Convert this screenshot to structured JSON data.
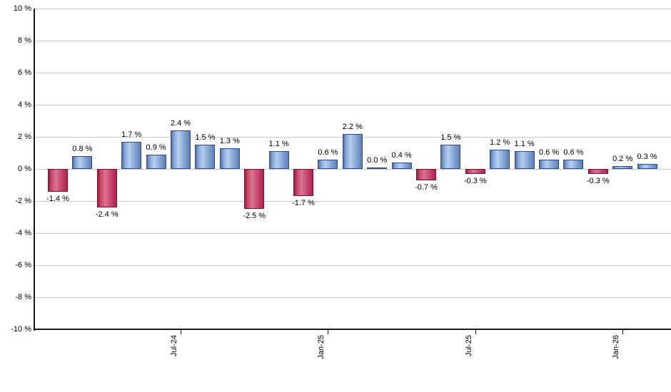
{
  "chart_data": {
    "type": "bar",
    "title": "",
    "xlabel": "",
    "ylabel": "",
    "unit": "%",
    "values": [
      -1.4,
      0.8,
      -2.4,
      1.7,
      0.9,
      2.4,
      1.5,
      1.3,
      -2.5,
      1.1,
      -1.7,
      0.6,
      2.2,
      0.0,
      0.4,
      -0.7,
      1.5,
      -0.3,
      1.2,
      1.1,
      0.6,
      0.6,
      -0.3,
      0.2,
      0.3
    ],
    "value_labels": [
      "-1.4 %",
      "0.8 %",
      "-2.4 %",
      "1.7 %",
      "0.9 %",
      "2.4 %",
      "1.5 %",
      "1.3 %",
      "-2.5 %",
      "1.1 %",
      "-1.7 %",
      "0.6 %",
      "2.2 %",
      "0.0 %",
      "0.4 %",
      "-0.7 %",
      "1.5 %",
      "-0.3 %",
      "1.2 %",
      "1.1 %",
      "0.6 %",
      "0.6 %",
      "-0.3 %",
      "0.2 %",
      "0.3 %"
    ],
    "x_ticks": [
      {
        "bar_index": 5,
        "label": "Jul-24"
      },
      {
        "bar_index": 11,
        "label": "Jan-25"
      },
      {
        "bar_index": 17,
        "label": "Jul-25"
      },
      {
        "bar_index": 23,
        "label": "Jan-26"
      }
    ],
    "y_axis": {
      "min": -10,
      "max": 10,
      "step": 2,
      "tick_labels": [
        "10 %",
        "8 %",
        "6 %",
        "4 %",
        "2 %",
        "0 %",
        "-2 %",
        "-4 %",
        "-6 %",
        "-8 %",
        "-10 %"
      ]
    },
    "grid": true,
    "legend": false,
    "colors": {
      "positive_bar": "#8fb0de",
      "positive_bar_border": "#2f4d7f",
      "negative_bar": "#c74a6e",
      "negative_bar_border": "#7d1133",
      "grid_line": "#c9c9c9",
      "axis_line": "#1a1a1a",
      "text": "#000000"
    }
  }
}
